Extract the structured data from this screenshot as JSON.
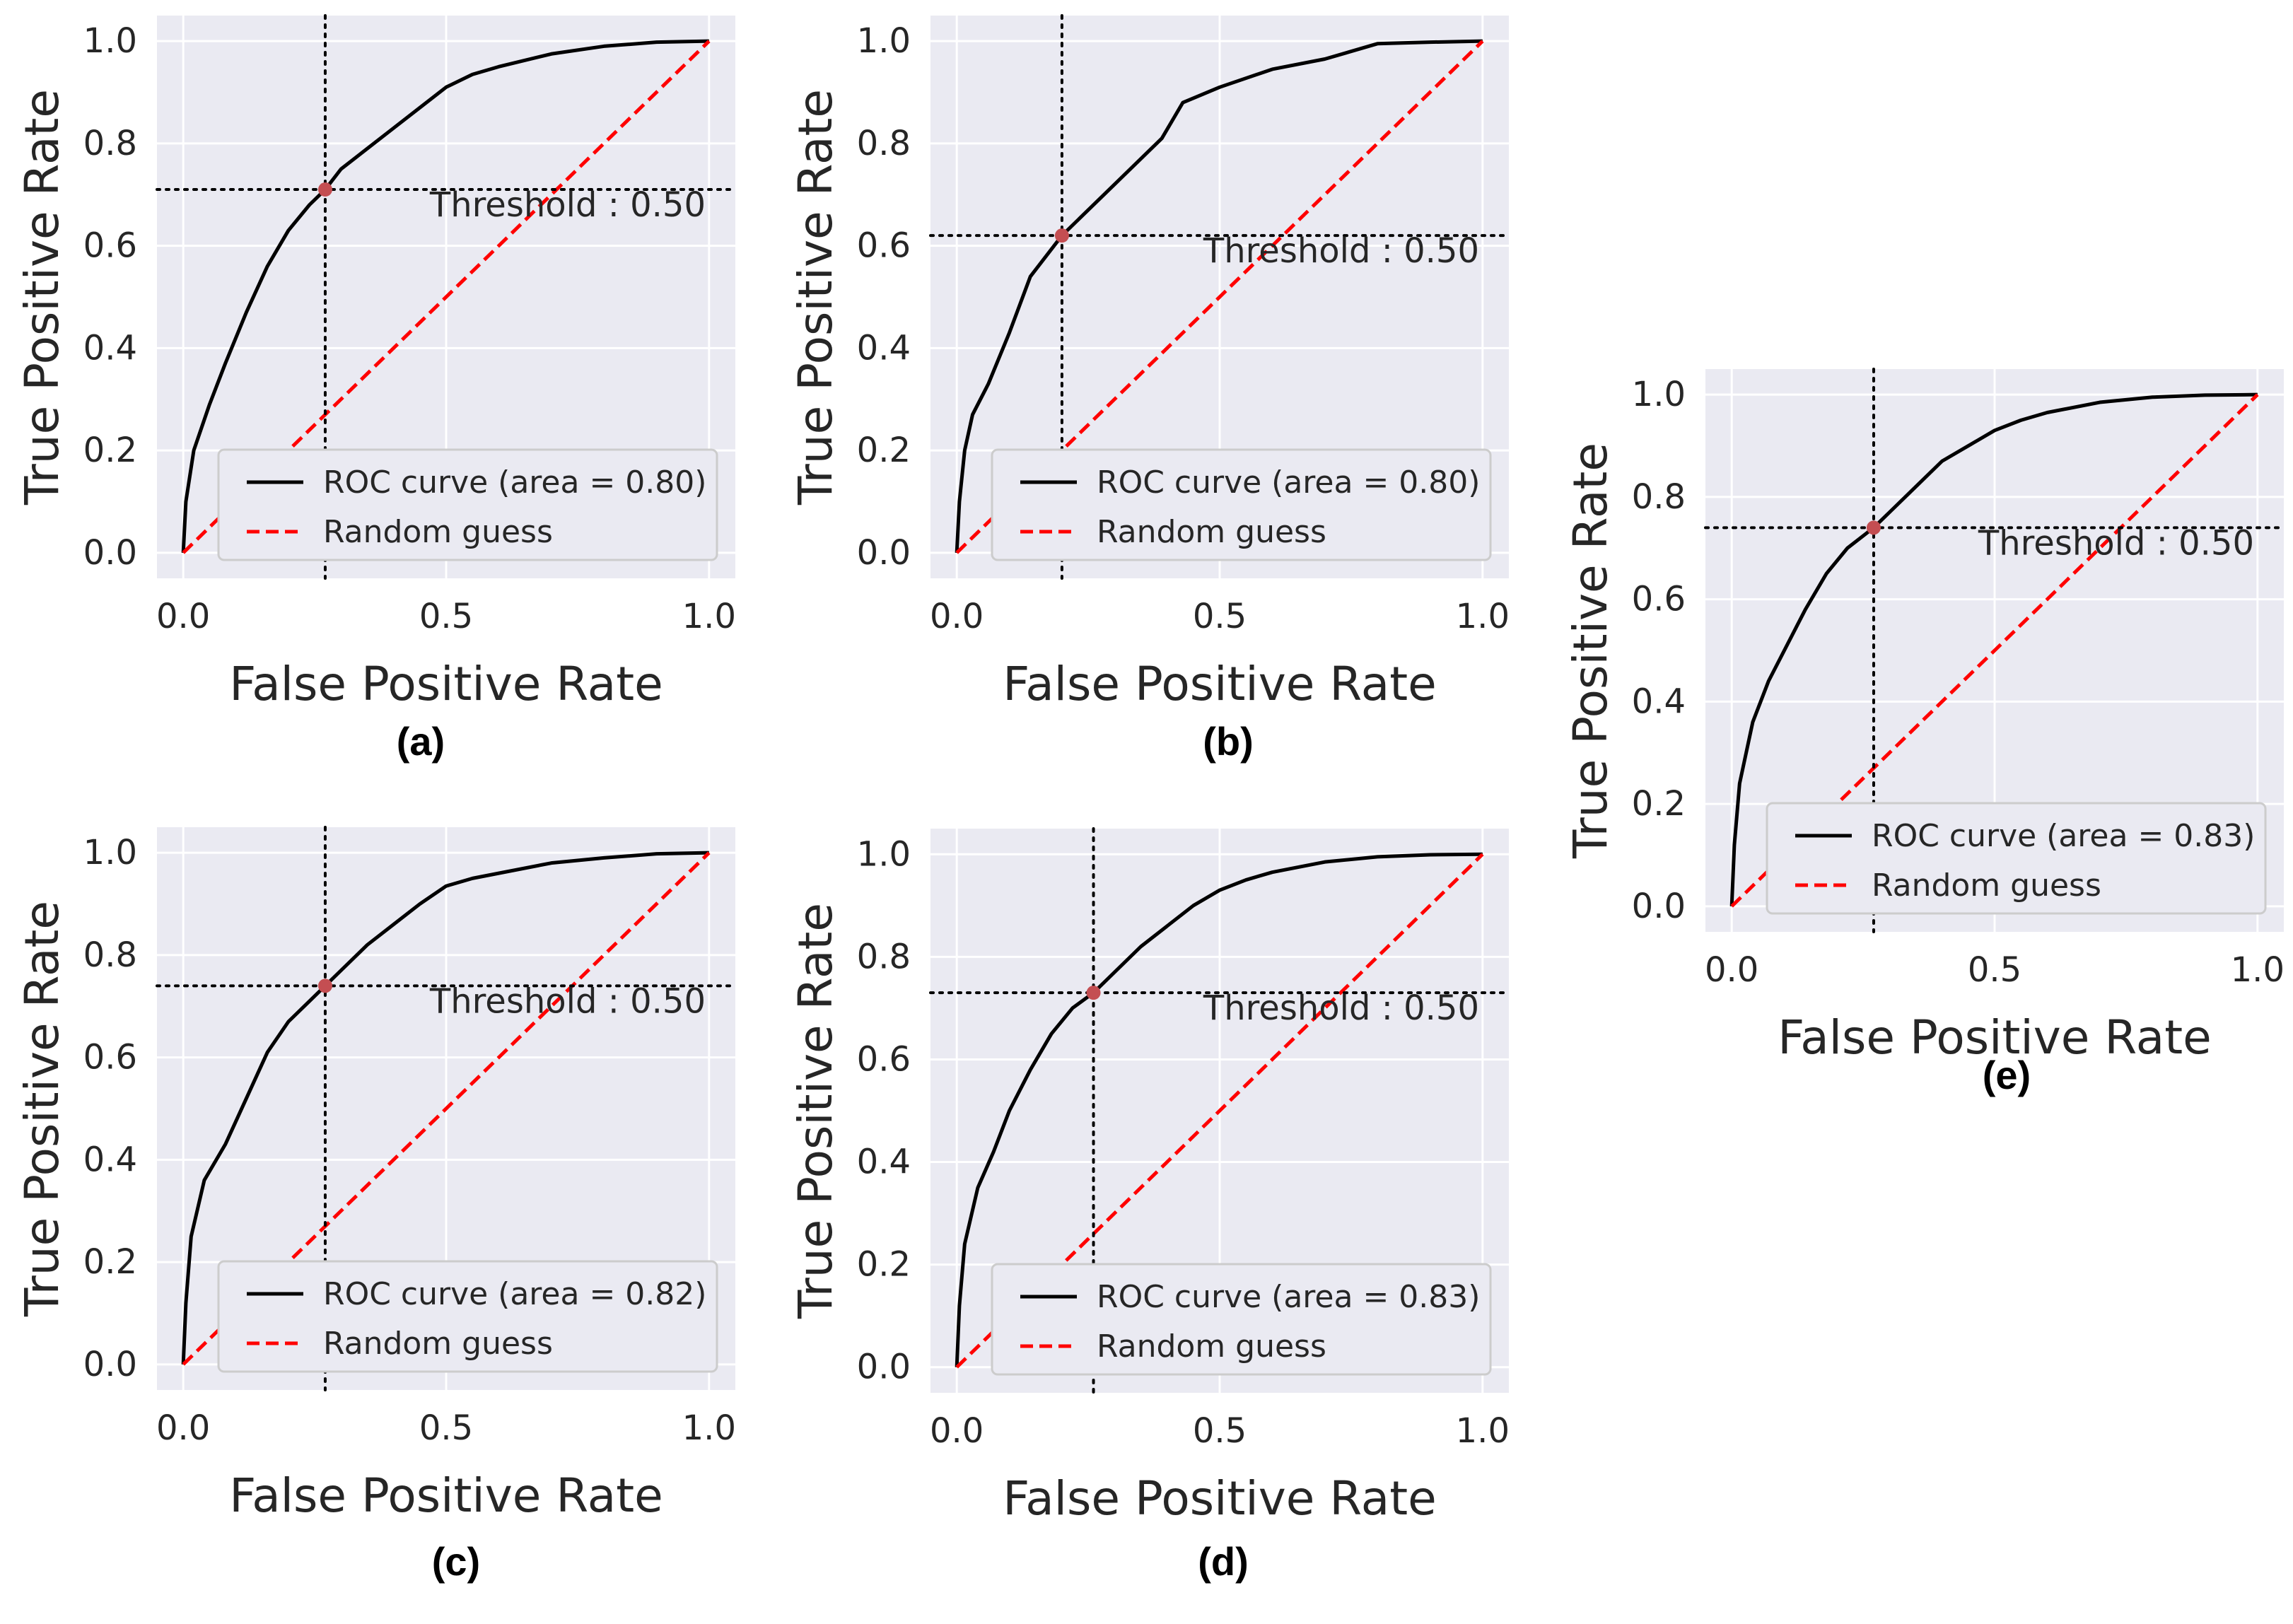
{
  "colors": {
    "plot_background": "#eaeaf2",
    "grid": "#ffffff",
    "roc_curve": "#000000",
    "random_guess": "#ff0000",
    "threshold_point": "#c44e52",
    "threshold_lines": "#000000"
  },
  "chart_data": [
    {
      "type": "line",
      "panel_label": "(a)",
      "xlabel": "False Positive Rate",
      "ylabel": "True Positive Rate",
      "xlim": [
        -0.05,
        1.05
      ],
      "ylim": [
        -0.05,
        1.05
      ],
      "xticks": [
        0.0,
        0.5,
        1.0
      ],
      "xtick_labels": [
        "0.0",
        "0.5",
        "1.0"
      ],
      "yticks": [
        0.0,
        0.2,
        0.4,
        0.6,
        0.8,
        1.0
      ],
      "ytick_labels": [
        "0.0",
        "0.2",
        "0.4",
        "0.6",
        "0.8",
        "1.0"
      ],
      "grid": true,
      "legend_position": "lower-right",
      "threshold": {
        "label": "Threshold : 0.50",
        "fpr": 0.27,
        "tpr": 0.71
      },
      "series": [
        {
          "name": "ROC curve (area = 0.80)",
          "style": "solid",
          "color": "#000000",
          "x": [
            0,
            0.005,
            0.02,
            0.05,
            0.08,
            0.12,
            0.16,
            0.2,
            0.24,
            0.27,
            0.3,
            0.35,
            0.4,
            0.45,
            0.5,
            0.55,
            0.6,
            0.7,
            0.8,
            0.9,
            1.0
          ],
          "y": [
            0,
            0.1,
            0.2,
            0.29,
            0.37,
            0.47,
            0.56,
            0.63,
            0.68,
            0.71,
            0.75,
            0.79,
            0.83,
            0.87,
            0.91,
            0.935,
            0.95,
            0.975,
            0.99,
            0.998,
            1.0
          ]
        },
        {
          "name": "Random guess",
          "style": "dashed",
          "color": "#ff0000",
          "x": [
            0,
            1
          ],
          "y": [
            0,
            1
          ]
        }
      ]
    },
    {
      "type": "line",
      "panel_label": "(b)",
      "xlabel": "False Positive Rate",
      "ylabel": "True Positive Rate",
      "xlim": [
        -0.05,
        1.05
      ],
      "ylim": [
        -0.05,
        1.05
      ],
      "xticks": [
        0.0,
        0.5,
        1.0
      ],
      "xtick_labels": [
        "0.0",
        "0.5",
        "1.0"
      ],
      "yticks": [
        0.0,
        0.2,
        0.4,
        0.6,
        0.8,
        1.0
      ],
      "ytick_labels": [
        "0.0",
        "0.2",
        "0.4",
        "0.6",
        "0.8",
        "1.0"
      ],
      "grid": true,
      "legend_position": "lower-right",
      "threshold": {
        "label": "Threshold : 0.50",
        "fpr": 0.2,
        "tpr": 0.62
      },
      "series": [
        {
          "name": "ROC curve (area = 0.80)",
          "style": "solid",
          "color": "#000000",
          "x": [
            0,
            0.005,
            0.015,
            0.03,
            0.06,
            0.1,
            0.14,
            0.2,
            0.3,
            0.39,
            0.43,
            0.5,
            0.6,
            0.7,
            0.8,
            0.9,
            1.0
          ],
          "y": [
            0,
            0.1,
            0.2,
            0.27,
            0.33,
            0.43,
            0.54,
            0.62,
            0.72,
            0.81,
            0.88,
            0.91,
            0.945,
            0.965,
            0.995,
            0.998,
            1.0
          ]
        },
        {
          "name": "Random guess",
          "style": "dashed",
          "color": "#ff0000",
          "x": [
            0,
            1
          ],
          "y": [
            0,
            1
          ]
        }
      ]
    },
    {
      "type": "line",
      "panel_label": "(c)",
      "xlabel": "False Positive Rate",
      "ylabel": "True Positive Rate",
      "xlim": [
        -0.05,
        1.05
      ],
      "ylim": [
        -0.05,
        1.05
      ],
      "xticks": [
        0.0,
        0.5,
        1.0
      ],
      "xtick_labels": [
        "0.0",
        "0.5",
        "1.0"
      ],
      "yticks": [
        0.0,
        0.2,
        0.4,
        0.6,
        0.8,
        1.0
      ],
      "ytick_labels": [
        "0.0",
        "0.2",
        "0.4",
        "0.6",
        "0.8",
        "1.0"
      ],
      "grid": true,
      "legend_position": "lower-right",
      "threshold": {
        "label": "Threshold : 0.50",
        "fpr": 0.27,
        "tpr": 0.74
      },
      "series": [
        {
          "name": "ROC curve (area = 0.82)",
          "style": "solid",
          "color": "#000000",
          "x": [
            0,
            0.005,
            0.015,
            0.04,
            0.08,
            0.12,
            0.16,
            0.2,
            0.24,
            0.27,
            0.3,
            0.35,
            0.4,
            0.45,
            0.5,
            0.55,
            0.6,
            0.7,
            0.8,
            0.9,
            1.0
          ],
          "y": [
            0,
            0.12,
            0.25,
            0.36,
            0.43,
            0.52,
            0.61,
            0.67,
            0.71,
            0.74,
            0.77,
            0.82,
            0.86,
            0.9,
            0.935,
            0.95,
            0.96,
            0.98,
            0.99,
            0.998,
            1.0
          ]
        },
        {
          "name": "Random guess",
          "style": "dashed",
          "color": "#ff0000",
          "x": [
            0,
            1
          ],
          "y": [
            0,
            1
          ]
        }
      ]
    },
    {
      "type": "line",
      "panel_label": "(d)",
      "xlabel": "False Positive Rate",
      "ylabel": "True Positive Rate",
      "xlim": [
        -0.05,
        1.05
      ],
      "ylim": [
        -0.05,
        1.05
      ],
      "xticks": [
        0.0,
        0.5,
        1.0
      ],
      "xtick_labels": [
        "0.0",
        "0.5",
        "1.0"
      ],
      "yticks": [
        0.0,
        0.2,
        0.4,
        0.6,
        0.8,
        1.0
      ],
      "ytick_labels": [
        "0.0",
        "0.2",
        "0.4",
        "0.6",
        "0.8",
        "1.0"
      ],
      "grid": true,
      "legend_position": "lower-right",
      "threshold": {
        "label": "Threshold : 0.50",
        "fpr": 0.26,
        "tpr": 0.73
      },
      "series": [
        {
          "name": "ROC curve (area = 0.83)",
          "style": "solid",
          "color": "#000000",
          "x": [
            0,
            0.005,
            0.015,
            0.04,
            0.07,
            0.1,
            0.14,
            0.18,
            0.22,
            0.26,
            0.3,
            0.35,
            0.4,
            0.45,
            0.5,
            0.55,
            0.6,
            0.7,
            0.8,
            0.9,
            1.0
          ],
          "y": [
            0,
            0.12,
            0.24,
            0.35,
            0.42,
            0.5,
            0.58,
            0.65,
            0.7,
            0.73,
            0.77,
            0.82,
            0.86,
            0.9,
            0.93,
            0.95,
            0.965,
            0.985,
            0.995,
            0.999,
            1.0
          ]
        },
        {
          "name": "Random guess",
          "style": "dashed",
          "color": "#ff0000",
          "x": [
            0,
            1
          ],
          "y": [
            0,
            1
          ]
        }
      ]
    },
    {
      "type": "line",
      "panel_label": "(e)",
      "xlabel": "False Positive Rate",
      "ylabel": "True Positive Rate",
      "xlim": [
        -0.05,
        1.05
      ],
      "ylim": [
        -0.05,
        1.05
      ],
      "xticks": [
        0.0,
        0.5,
        1.0
      ],
      "xtick_labels": [
        "0.0",
        "0.5",
        "1.0"
      ],
      "yticks": [
        0.0,
        0.2,
        0.4,
        0.6,
        0.8,
        1.0
      ],
      "ytick_labels": [
        "0.0",
        "0.2",
        "0.4",
        "0.6",
        "0.8",
        "1.0"
      ],
      "grid": true,
      "legend_position": "lower-right",
      "threshold": {
        "label": "Threshold : 0.50",
        "fpr": 0.27,
        "tpr": 0.74
      },
      "series": [
        {
          "name": "ROC curve (area = 0.83)",
          "style": "solid",
          "color": "#000000",
          "x": [
            0,
            0.005,
            0.015,
            0.04,
            0.07,
            0.1,
            0.14,
            0.18,
            0.22,
            0.27,
            0.3,
            0.35,
            0.4,
            0.45,
            0.5,
            0.55,
            0.6,
            0.7,
            0.8,
            0.9,
            1.0
          ],
          "y": [
            0,
            0.12,
            0.24,
            0.36,
            0.44,
            0.5,
            0.58,
            0.65,
            0.7,
            0.74,
            0.77,
            0.82,
            0.87,
            0.9,
            0.93,
            0.95,
            0.965,
            0.985,
            0.995,
            0.999,
            1.0
          ]
        },
        {
          "name": "Random guess",
          "style": "dashed",
          "color": "#ff0000",
          "x": [
            0,
            1
          ],
          "y": [
            0,
            1
          ]
        }
      ]
    }
  ]
}
